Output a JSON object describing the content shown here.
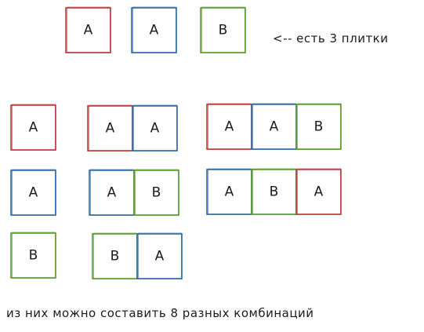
{
  "colors": {
    "red": "#c0393b",
    "blue": "#2f6aa7",
    "green": "#5a9a2b",
    "ink": "#1a1a1a"
  },
  "top_tiles": [
    {
      "letter": "A",
      "color": "red"
    },
    {
      "letter": "A",
      "color": "blue"
    },
    {
      "letter": "B",
      "color": "green"
    }
  ],
  "note": "<-- есть 3 плитки",
  "combinations": [
    [
      {
        "letter": "A",
        "color": "red"
      }
    ],
    [
      {
        "letter": "A",
        "color": "blue"
      }
    ],
    [
      {
        "letter": "B",
        "color": "green"
      }
    ],
    [
      {
        "letter": "A",
        "color": "red"
      },
      {
        "letter": "A",
        "color": "blue"
      }
    ],
    [
      {
        "letter": "A",
        "color": "blue"
      },
      {
        "letter": "B",
        "color": "green"
      }
    ],
    [
      {
        "letter": "B",
        "color": "green"
      },
      {
        "letter": "A",
        "color": "blue"
      }
    ],
    [
      {
        "letter": "A",
        "color": "red"
      },
      {
        "letter": "A",
        "color": "blue"
      },
      {
        "letter": "B",
        "color": "green"
      }
    ],
    [
      {
        "letter": "A",
        "color": "blue"
      },
      {
        "letter": "B",
        "color": "green"
      },
      {
        "letter": "A",
        "color": "red"
      }
    ]
  ],
  "summary": "из них можно составить 8 разных комбинаций"
}
